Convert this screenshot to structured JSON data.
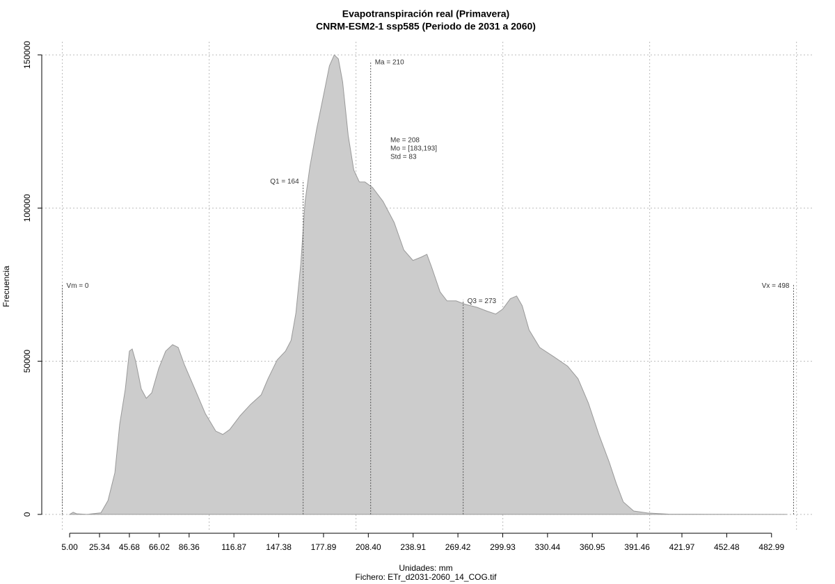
{
  "chart_data": {
    "type": "area",
    "title": "Evapotranspiración real (Primavera)",
    "subtitle": "CNRM-ESM2-1 ssp585 (Periodo de 2031 a 2060)",
    "x_label": "Unidades: mm",
    "file_label": "Fichero: ETr_d2031-2060_14_COG.tif",
    "y_label": "Frecuencia",
    "color": "#cccccc",
    "line_color": "#999999",
    "x": [
      5.0,
      7.4,
      9.7,
      16.9,
      26.3,
      31.1,
      35.8,
      39.1,
      42.9,
      45.7,
      47.6,
      50.0,
      53.8,
      57.2,
      60.9,
      65.7,
      70.4,
      75.1,
      78.9,
      83.2,
      90.3,
      97.4,
      104.5,
      109.3,
      114.0,
      121.1,
      128.2,
      135.4,
      140.1,
      146.3,
      152.0,
      155.8,
      159.1,
      162.4,
      165.3,
      168.6,
      173.3,
      178.1,
      181.9,
      185.2,
      188.0,
      190.9,
      194.7,
      198.5,
      202.3,
      206.1,
      211.3,
      218.4,
      226.0,
      232.6,
      238.8,
      244.5,
      248.3,
      251.6,
      257.3,
      262.0,
      268.2,
      274.3,
      282.4,
      289.5,
      295.2,
      299.9,
      305.1,
      309.4,
      313.2,
      317.9,
      325.1,
      334.6,
      344.1,
      351.2,
      358.3,
      365.4,
      372.5,
      377.2,
      382.0,
      389.1,
      398.6,
      412.8,
      431.8,
      493.4
    ],
    "values": [
      0,
      700,
      200,
      0,
      500,
      4500,
      13600,
      29500,
      40900,
      53300,
      54000,
      49900,
      40900,
      37900,
      39700,
      47700,
      53300,
      55400,
      54500,
      48800,
      40900,
      32900,
      27200,
      26100,
      27700,
      32200,
      35900,
      39000,
      44300,
      50400,
      53300,
      56800,
      65800,
      81700,
      102000,
      113500,
      126000,
      137300,
      146400,
      150000,
      148700,
      141200,
      123700,
      112400,
      108500,
      108500,
      106700,
      102200,
      95300,
      86300,
      82900,
      84000,
      84900,
      80600,
      72600,
      69700,
      69700,
      68600,
      67600,
      66300,
      65400,
      67000,
      70400,
      71300,
      68100,
      60200,
      54500,
      51500,
      48400,
      44300,
      36300,
      26100,
      17000,
      10200,
      4100,
      1100,
      450,
      100,
      50,
      0
    ],
    "xlim": [
      -14,
      512
    ],
    "ylim": [
      -5700,
      154300
    ],
    "xticks": [
      {
        "value": 5.0,
        "label": "5.00"
      },
      {
        "value": 25.34,
        "label": "25.34"
      },
      {
        "value": 45.68,
        "label": "45.68"
      },
      {
        "value": 66.02,
        "label": "66.02"
      },
      {
        "value": 86.36,
        "label": "86.36"
      },
      {
        "value": 116.87,
        "label": "116.87"
      },
      {
        "value": 147.38,
        "label": "147.38"
      },
      {
        "value": 177.89,
        "label": "177.89"
      },
      {
        "value": 208.4,
        "label": "208.40"
      },
      {
        "value": 238.91,
        "label": "238.91"
      },
      {
        "value": 269.42,
        "label": "269.42"
      },
      {
        "value": 299.93,
        "label": "299.93"
      },
      {
        "value": 330.44,
        "label": "330.44"
      },
      {
        "value": 360.95,
        "label": "360.95"
      },
      {
        "value": 391.46,
        "label": "391.46"
      },
      {
        "value": 421.97,
        "label": "421.97"
      },
      {
        "value": 452.48,
        "label": "452.48"
      },
      {
        "value": 482.99,
        "label": "482.99"
      }
    ],
    "yticks": [
      0,
      50000,
      100000,
      150000
    ],
    "xgrid": [
      0,
      100,
      200,
      300,
      400,
      500
    ],
    "grid": true,
    "annotations": [
      {
        "text": "Vm = 0",
        "x": 0,
        "y": 75000
      },
      {
        "text": "Q1 = 164",
        "x": 164,
        "y": 109000
      },
      {
        "text": "Ma = 210",
        "x": 210,
        "y": 148000
      },
      {
        "text": "Q3 = 273",
        "x": 273,
        "y": 70000
      },
      {
        "text": "Vx = 498",
        "x": 498,
        "y": 75000
      }
    ],
    "stats": [
      "Me = 208",
      "Mo = [183,193]",
      "Std = 83"
    ]
  }
}
